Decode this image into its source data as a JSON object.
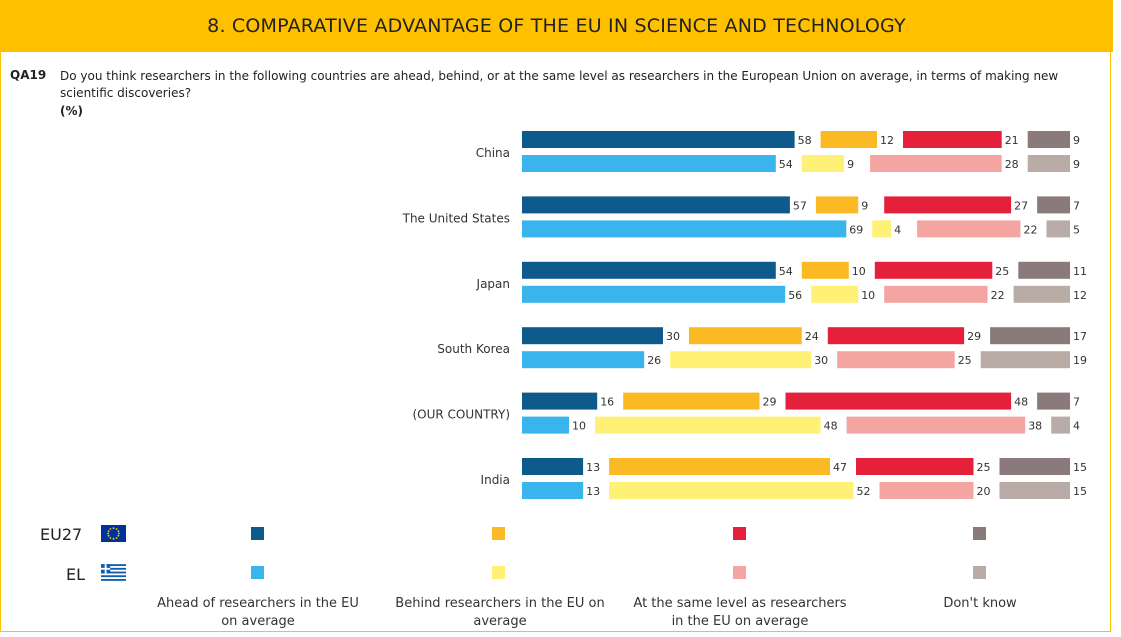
{
  "header": {
    "title": "8. COMPARATIVE ADVANTAGE OF THE EU IN SCIENCE AND TECHNOLOGY"
  },
  "question": {
    "id": "QA19",
    "text": "Do you think researchers in the following countries are ahead, behind, or at the same level as researchers in the European Union on average, in terms of making new scientific discoveries?",
    "unit": "(%)"
  },
  "legend": {
    "rows": [
      {
        "label": "EU27",
        "flag": "eu-flag-icon"
      },
      {
        "label": "EL",
        "flag": "greece-flag-icon"
      }
    ],
    "categories": [
      "Ahead of researchers in the EU on average",
      "Behind researchers in the EU on average",
      "At the same level as researchers in the EU on average",
      "Don't know"
    ]
  },
  "colors": {
    "EU27": [
      "#0e5a8a",
      "#fbba24",
      "#e5203a",
      "#8a7a7c"
    ],
    "EL": [
      "#3ab4ec",
      "#fff176",
      "#f4a5a2",
      "#b9aba5"
    ]
  },
  "chart_data": {
    "type": "bar",
    "orientation": "horizontal",
    "stacked": true,
    "categories": [
      "China",
      "The United States",
      "Japan",
      "South Korea",
      "(OUR COUNTRY)",
      "India"
    ],
    "series_groups": [
      "EU27",
      "EL"
    ],
    "segments": [
      "Ahead of researchers in the EU on average",
      "Behind researchers in the EU on average",
      "At the same level as researchers in the EU on average",
      "Don't know"
    ],
    "series": [
      {
        "name": "EU27",
        "values": [
          [
            58,
            12,
            21,
            9
          ],
          [
            57,
            9,
            27,
            7
          ],
          [
            54,
            10,
            25,
            11
          ],
          [
            30,
            24,
            29,
            17
          ],
          [
            16,
            29,
            48,
            7
          ],
          [
            13,
            47,
            25,
            15
          ]
        ]
      },
      {
        "name": "EL",
        "values": [
          [
            54,
            9,
            28,
            9
          ],
          [
            69,
            4,
            22,
            5
          ],
          [
            56,
            10,
            22,
            12
          ],
          [
            26,
            30,
            25,
            19
          ],
          [
            10,
            48,
            38,
            4
          ],
          [
            13,
            52,
            20,
            15
          ]
        ]
      }
    ]
  }
}
